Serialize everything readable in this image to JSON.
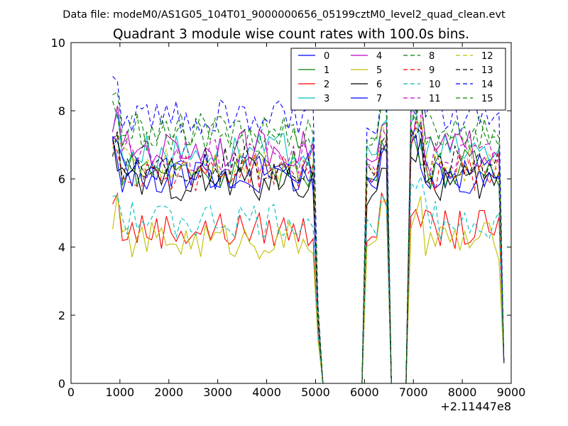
{
  "chart_data": {
    "type": "line",
    "suptitle": "Data file: modeM0/AS1G05_104T01_9000000656_05199cztM0_level2_quad_clean.evt",
    "title": "Quadrant 3 module wise count rates with 100.0s bins.",
    "xlabel": "",
    "ylabel": "",
    "x_offset_label": "+2.11447e8",
    "xlim": [
      0,
      9000
    ],
    "ylim": [
      0,
      10
    ],
    "xticks": [
      0,
      1000,
      2000,
      3000,
      4000,
      5000,
      6000,
      7000,
      8000,
      9000
    ],
    "yticks": [
      0,
      2,
      4,
      6,
      8,
      10
    ],
    "grid": false,
    "legend_position": "top-right",
    "x": [
      850,
      950,
      1050,
      1150,
      1250,
      1350,
      1450,
      1550,
      1650,
      1750,
      1850,
      1950,
      2050,
      2150,
      2250,
      2350,
      2450,
      2550,
      2650,
      2750,
      2850,
      2950,
      3050,
      3150,
      3250,
      3350,
      3450,
      3550,
      3650,
      3750,
      3850,
      3950,
      4050,
      4150,
      4250,
      4350,
      4450,
      4550,
      4650,
      4750,
      4850,
      4950,
      5050,
      5150,
      5250,
      5350,
      5450,
      5550,
      5650,
      5750,
      5850,
      5950,
      6050,
      6150,
      6250,
      6350,
      6450,
      6550,
      6650,
      6750,
      6850,
      6950,
      7050,
      7150,
      7250,
      7350,
      7450,
      7550,
      7650,
      7750,
      7850,
      7950,
      8050,
      8150,
      8250,
      8350,
      8450,
      8550,
      8650,
      8750,
      8850
    ],
    "series": [
      {
        "name": "0",
        "color": "#0000ff",
        "dash": "solid",
        "base": 6.2,
        "peaks": [
          5.8,
          7.0,
          7.3
        ]
      },
      {
        "name": "1",
        "color": "#008000",
        "dash": "solid",
        "base": 6.3,
        "peaks": [
          6.0,
          7.9,
          7.0
        ]
      },
      {
        "name": "2",
        "color": "#ff0000",
        "dash": "solid",
        "base": 4.5,
        "peaks": [
          4.3,
          4.9,
          5.1
        ]
      },
      {
        "name": "3",
        "color": "#00bfbf",
        "dash": "solid",
        "base": 6.8,
        "peaks": [
          6.7,
          7.4,
          8.1
        ]
      },
      {
        "name": "4",
        "color": "#bf00bf",
        "dash": "solid",
        "base": 6.9,
        "peaks": [
          6.5,
          7.7,
          7.9
        ]
      },
      {
        "name": "5",
        "color": "#bfbf00",
        "dash": "solid",
        "base": 4.2,
        "peaks": [
          4.1,
          4.7,
          5.0
        ]
      },
      {
        "name": "6",
        "color": "#000000",
        "dash": "solid",
        "base": 5.9,
        "peaks": [
          5.5,
          6.6,
          6.5
        ]
      },
      {
        "name": "7",
        "color": "#0000ff",
        "dash": "solid",
        "base": 6.1,
        "peaks": [
          5.9,
          6.5,
          7.5
        ]
      },
      {
        "name": "8",
        "color": "#008000",
        "dash": "dash",
        "base": 7.3,
        "peaks": [
          7.0,
          7.6,
          7.9
        ]
      },
      {
        "name": "9",
        "color": "#ff0000",
        "dash": "dash",
        "base": 6.2,
        "peaks": [
          6.0,
          6.1,
          7.7
        ]
      },
      {
        "name": "10",
        "color": "#00bfbf",
        "dash": "dash",
        "base": 4.8,
        "peaks": [
          4.6,
          5.3,
          5.7
        ]
      },
      {
        "name": "11",
        "color": "#bf00bf",
        "dash": "dash",
        "base": 6.6,
        "peaks": [
          6.4,
          7.1,
          7.8
        ]
      },
      {
        "name": "12",
        "color": "#bfbf00",
        "dash": "dash",
        "base": 6.5,
        "peaks": [
          6.3,
          7.0,
          7.4
        ]
      },
      {
        "name": "13",
        "color": "#000000",
        "dash": "dash",
        "base": 6.4,
        "peaks": [
          6.2,
          6.9,
          7.2
        ]
      },
      {
        "name": "14",
        "color": "#0000ff",
        "dash": "dash",
        "base": 7.8,
        "peaks": [
          7.4,
          7.8,
          8.0
        ]
      },
      {
        "name": "15",
        "color": "#008000",
        "dash": "dash",
        "base": 7.4,
        "peaks": [
          7.2,
          7.9,
          7.6
        ]
      }
    ]
  }
}
